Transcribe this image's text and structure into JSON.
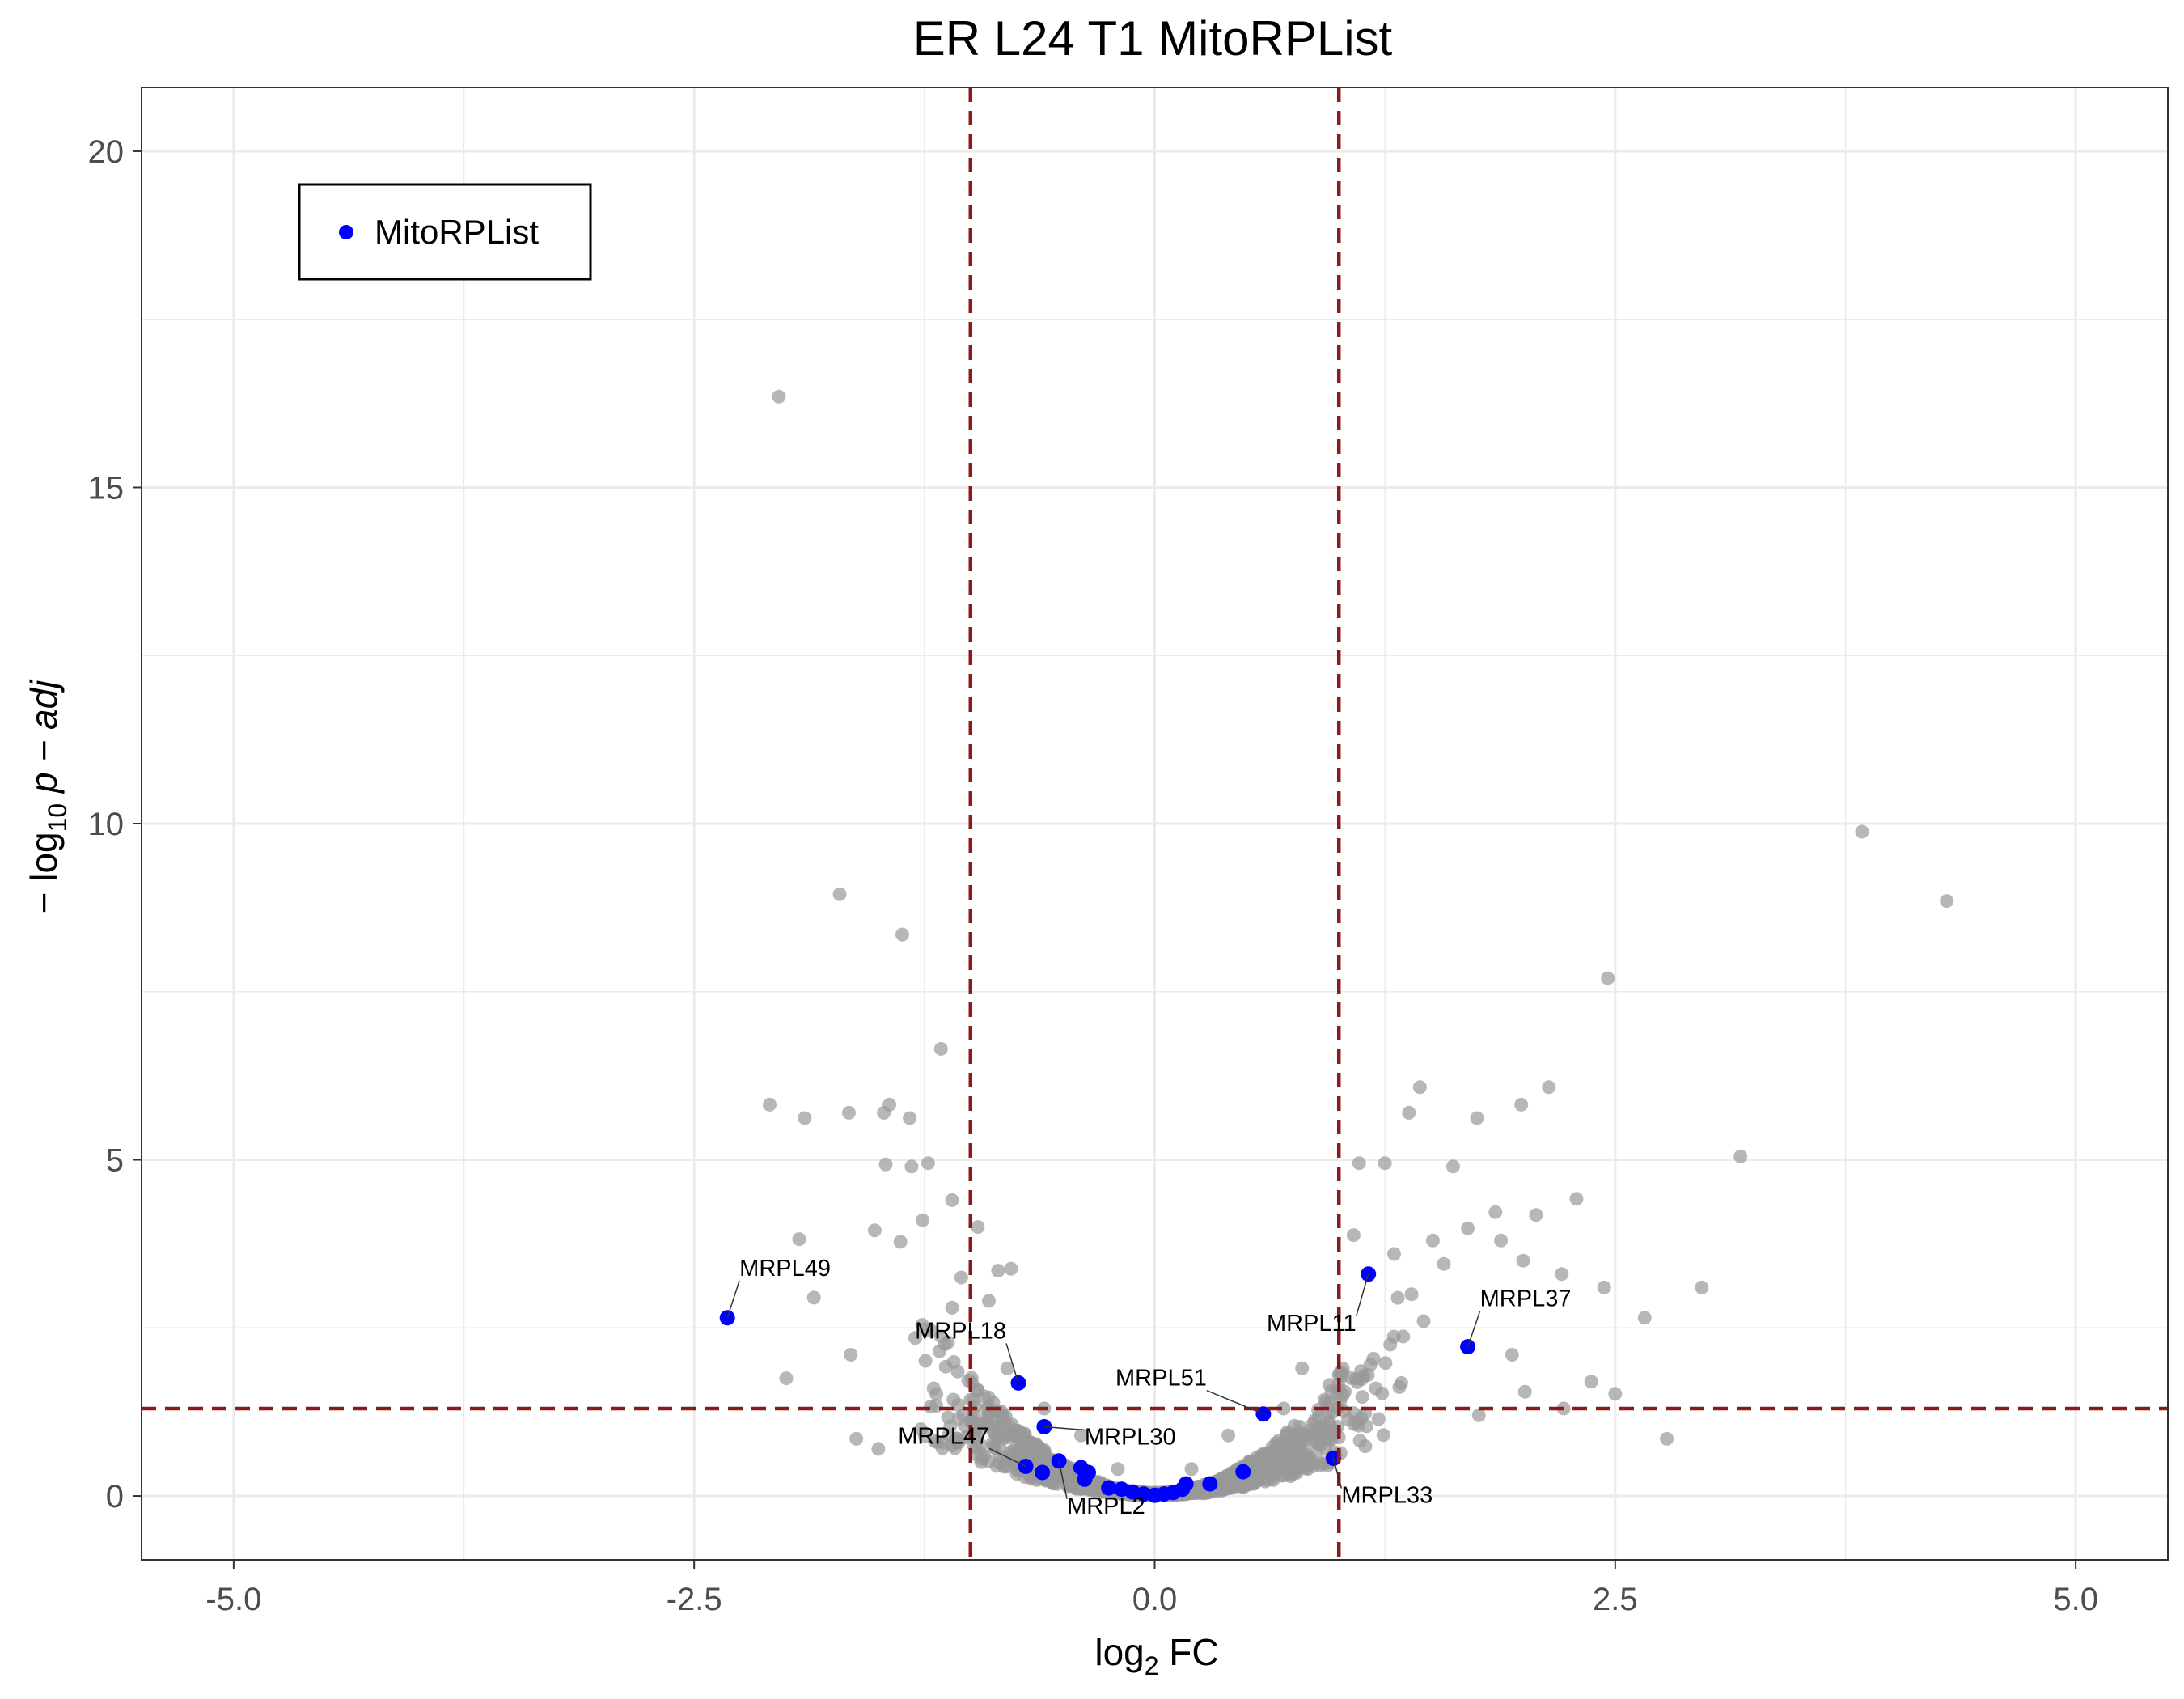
{
  "chart_data": {
    "type": "scatter",
    "title": "ER L24 T1 MitoRPList",
    "xlabel": "log2 FC",
    "ylabel": "-log10 p-adj",
    "xlim": [
      -5.5,
      5.5
    ],
    "ylim": [
      -0.95,
      20.95
    ],
    "x_ticks": [
      "-5.0",
      "-2.5",
      "0.0",
      "2.5",
      "5.0"
    ],
    "y_ticks": [
      "0",
      "5",
      "10",
      "15",
      "20"
    ],
    "grid": true,
    "legend": {
      "position": "top-left",
      "entries": [
        "MitoRPList"
      ]
    },
    "thresholds": {
      "fc": [
        -1,
        1
      ],
      "padj": 1.3
    },
    "colors": {
      "background_points": "#999999",
      "highlight_points": "#0000ff",
      "threshold_lines": "#8b1a1a",
      "grid": "#ebebeb"
    },
    "series": [
      {
        "name": "MitoRPList",
        "points": [
          {
            "x": -2.32,
            "y": 2.65,
            "label": "MRPL49"
          },
          {
            "x": -0.74,
            "y": 1.68,
            "label": "MRPL18"
          },
          {
            "x": -0.6,
            "y": 1.03,
            "label": "MRPL30"
          },
          {
            "x": -0.7,
            "y": 0.44,
            "label": "MRPL47"
          },
          {
            "x": -0.52,
            "y": 0.52,
            "label": "MRPL2"
          },
          {
            "x": 0.59,
            "y": 1.22,
            "label": "MRPL51"
          },
          {
            "x": 1.16,
            "y": 3.3,
            "label": "MRPL11"
          },
          {
            "x": 1.7,
            "y": 2.22,
            "label": "MRPL37"
          },
          {
            "x": 0.97,
            "y": 0.56,
            "label": "MRPL33"
          },
          {
            "x": -0.61,
            "y": 0.35
          },
          {
            "x": -0.4,
            "y": 0.42
          },
          {
            "x": -0.36,
            "y": 0.35
          },
          {
            "x": -0.38,
            "y": 0.25
          },
          {
            "x": -0.25,
            "y": 0.12
          },
          {
            "x": -0.18,
            "y": 0.1
          },
          {
            "x": -0.12,
            "y": 0.06
          },
          {
            "x": -0.06,
            "y": 0.03
          },
          {
            "x": 0.0,
            "y": 0.01
          },
          {
            "x": 0.05,
            "y": 0.03
          },
          {
            "x": 0.1,
            "y": 0.05
          },
          {
            "x": 0.15,
            "y": 0.1
          },
          {
            "x": 0.17,
            "y": 0.18
          },
          {
            "x": 0.3,
            "y": 0.18
          },
          {
            "x": 0.48,
            "y": 0.36
          }
        ]
      },
      {
        "name": "",
        "note": "approx. 2000 non-highlighted genes; representative sample",
        "points": [
          {
            "x": -2.04,
            "y": 16.35
          },
          {
            "x": 3.84,
            "y": 9.88
          },
          {
            "x": 4.3,
            "y": 8.85
          },
          {
            "x": -1.71,
            "y": 8.95
          },
          {
            "x": -1.37,
            "y": 8.35
          },
          {
            "x": 2.46,
            "y": 7.7
          },
          {
            "x": -1.16,
            "y": 6.65
          },
          {
            "x": 2.14,
            "y": 6.08
          },
          {
            "x": 1.44,
            "y": 6.08
          },
          {
            "x": -2.09,
            "y": 5.82
          },
          {
            "x": -1.66,
            "y": 5.7
          },
          {
            "x": -1.44,
            "y": 5.82
          },
          {
            "x": -1.47,
            "y": 5.7
          },
          {
            "x": -1.9,
            "y": 5.62
          },
          {
            "x": -1.33,
            "y": 5.62
          },
          {
            "x": 1.38,
            "y": 5.7
          },
          {
            "x": 1.75,
            "y": 5.62
          },
          {
            "x": 1.99,
            "y": 5.82
          },
          {
            "x": 3.18,
            "y": 5.05
          },
          {
            "x": -1.46,
            "y": 4.93
          },
          {
            "x": -1.32,
            "y": 4.9
          },
          {
            "x": -1.23,
            "y": 4.95
          },
          {
            "x": 1.11,
            "y": 4.95
          },
          {
            "x": 1.25,
            "y": 4.95
          },
          {
            "x": 1.62,
            "y": 4.9
          },
          {
            "x": 2.29,
            "y": 4.42
          },
          {
            "x": 2.07,
            "y": 4.18
          },
          {
            "x": -1.1,
            "y": 4.4
          },
          {
            "x": -1.26,
            "y": 4.1
          },
          {
            "x": -1.52,
            "y": 3.95
          },
          {
            "x": -1.93,
            "y": 3.82
          },
          {
            "x": -1.38,
            "y": 3.78
          },
          {
            "x": -0.96,
            "y": 4.0
          },
          {
            "x": 1.08,
            "y": 3.88
          },
          {
            "x": 1.3,
            "y": 3.6
          },
          {
            "x": 1.51,
            "y": 3.8
          },
          {
            "x": 1.7,
            "y": 3.98
          },
          {
            "x": 1.85,
            "y": 4.22
          },
          {
            "x": 1.88,
            "y": 3.8
          },
          {
            "x": 2.0,
            "y": 3.5
          },
          {
            "x": 2.21,
            "y": 3.3
          },
          {
            "x": 2.44,
            "y": 3.1
          },
          {
            "x": 2.97,
            "y": 3.1
          },
          {
            "x": 2.66,
            "y": 2.65
          },
          {
            "x": -1.85,
            "y": 2.95
          },
          {
            "x": -2.0,
            "y": 1.75
          },
          {
            "x": -1.65,
            "y": 2.1
          },
          {
            "x": -1.3,
            "y": 2.35
          },
          {
            "x": -1.1,
            "y": 2.8
          },
          {
            "x": -1.05,
            "y": 3.25
          },
          {
            "x": -0.85,
            "y": 3.35
          },
          {
            "x": -0.78,
            "y": 3.38
          },
          {
            "x": -0.9,
            "y": 2.9
          },
          {
            "x": 1.46,
            "y": 2.6
          },
          {
            "x": 1.57,
            "y": 3.45
          },
          {
            "x": 1.94,
            "y": 2.1
          },
          {
            "x": 2.01,
            "y": 1.55
          },
          {
            "x": 2.22,
            "y": 1.3
          },
          {
            "x": 2.37,
            "y": 1.7
          },
          {
            "x": 2.5,
            "y": 1.52
          },
          {
            "x": 2.78,
            "y": 0.85
          },
          {
            "x": 1.76,
            "y": 1.2
          },
          {
            "x": -1.62,
            "y": 0.85
          },
          {
            "x": -1.5,
            "y": 0.7
          },
          {
            "x": -1.2,
            "y": 1.6
          },
          {
            "x": -0.8,
            "y": 1.9
          },
          {
            "x": 0.8,
            "y": 1.9
          },
          {
            "x": 1.0,
            "y": 1.8
          },
          {
            "x": 1.2,
            "y": 1.6
          },
          {
            "x": -0.6,
            "y": 1.3
          },
          {
            "x": -0.4,
            "y": 0.9
          },
          {
            "x": -0.2,
            "y": 0.4
          },
          {
            "x": 0.2,
            "y": 0.4
          },
          {
            "x": 0.4,
            "y": 0.9
          },
          {
            "x": 0.7,
            "y": 1.3
          },
          {
            "x": 0.9,
            "y": 1.0
          },
          {
            "x": -0.9,
            "y": 1.1
          },
          {
            "x": 1.1,
            "y": 1.1
          }
        ]
      }
    ]
  }
}
